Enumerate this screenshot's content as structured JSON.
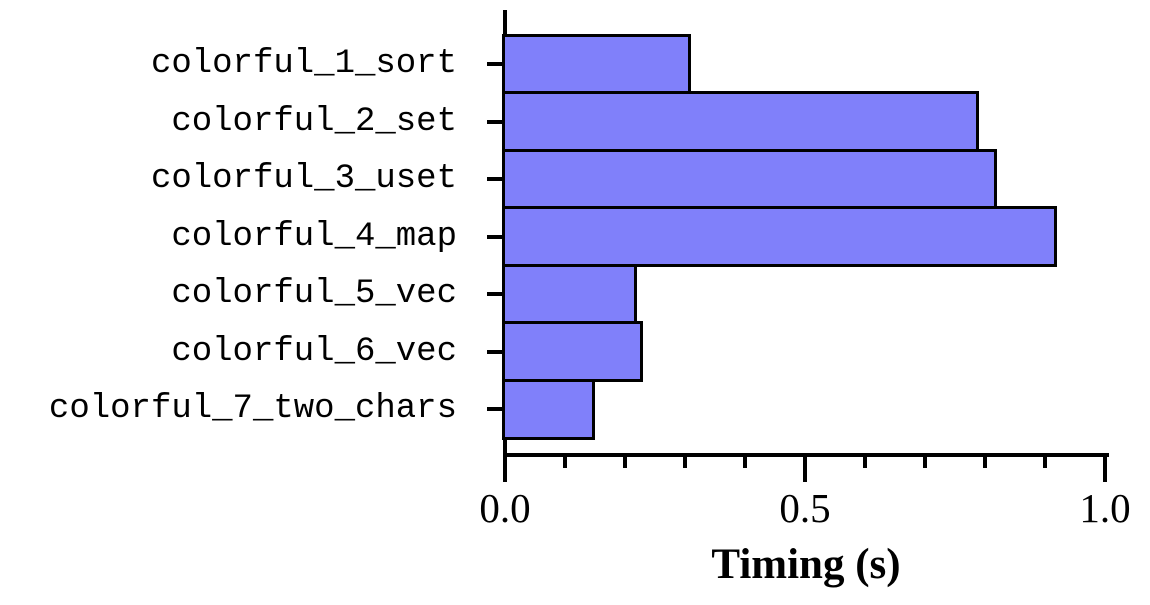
{
  "chart_data": {
    "type": "bar",
    "orientation": "horizontal",
    "categories": [
      "colorful_1_sort",
      "colorful_2_set",
      "colorful_3_uset",
      "colorful_4_map",
      "colorful_5_vec",
      "colorful_6_vec",
      "colorful_7_two_chars"
    ],
    "values": [
      0.31,
      0.79,
      0.82,
      0.92,
      0.22,
      0.23,
      0.15
    ],
    "xlabel": "Timing (s)",
    "ylabel": "",
    "title": "",
    "xlim": [
      0.0,
      1.0
    ],
    "xticks": [
      {
        "value": 0.0,
        "label": "0.0"
      },
      {
        "value": 0.5,
        "label": "0.5"
      },
      {
        "value": 1.0,
        "label": "1.0"
      }
    ],
    "minor_tick_step": 0.1,
    "grid": false,
    "legend": null,
    "colors": {
      "bar_fill": "#8080fa",
      "bar_border": "#000000",
      "axis": "#000000",
      "text": "#000000",
      "background": "#ffffff"
    }
  }
}
